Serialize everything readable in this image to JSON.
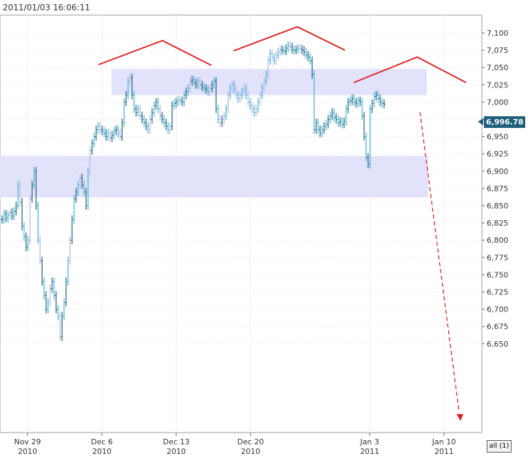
{
  "timestamp": "2011/01/03 16:06:11",
  "range_button": "all (1)",
  "last_price": "6,996.78",
  "colors": {
    "bar_primary": "#1b5c73",
    "bar_secondary": "#35b3d6",
    "bar_light": "#b9b1de",
    "zone_fill": "#e2e2fb",
    "annotation": "#e02020",
    "grid": "#d9d9d9",
    "axis": "#666666",
    "price_tag": "#1f5f7a"
  },
  "chart_data": {
    "type": "bar",
    "title": "",
    "xlabel": "",
    "ylabel": "",
    "ylim": [
      6640,
      7120
    ],
    "y_ticks": [
      "7,100",
      "7,075",
      "7,050",
      "7,025",
      "7,000",
      "6,975",
      "6,950",
      "6,925",
      "6,900",
      "6,875",
      "6,850",
      "6,825",
      "6,800",
      "6,775",
      "6,750",
      "6,725",
      "6,700",
      "6,675",
      "6,650"
    ],
    "x_ticks": [
      {
        "label": "Nov 29",
        "year": "2010"
      },
      {
        "label": "Dec 6",
        "year": "2010"
      },
      {
        "label": "Dec 13",
        "year": "2010"
      },
      {
        "label": "Dec 20",
        "year": "2010"
      },
      {
        "label": "Jan 3",
        "year": "2011"
      },
      {
        "label": "Jan 10",
        "year": "2011"
      }
    ],
    "last_value": 6996.78,
    "zones": [
      {
        "from": 7010,
        "to": 7048
      },
      {
        "from": 6862,
        "to": 6922
      }
    ],
    "price_series": [
      6830,
      6838,
      6832,
      6836,
      6840,
      6835,
      6842,
      6850,
      6880,
      6855,
      6820,
      6805,
      6790,
      6800,
      6860,
      6880,
      6900,
      6850,
      6800,
      6770,
      6740,
      6720,
      6700,
      6710,
      6730,
      6740,
      6720,
      6700,
      6690,
      6660,
      6690,
      6710,
      6740,
      6770,
      6800,
      6830,
      6860,
      6870,
      6880,
      6890,
      6880,
      6870,
      6850,
      6900,
      6930,
      6940,
      6950,
      6960,
      6965,
      6960,
      6958,
      6955,
      6950,
      6955,
      6948,
      6952,
      6958,
      6960,
      6955,
      6950,
      6970,
      7000,
      7010,
      7030,
      7035,
      7010,
      6990,
      6985,
      6990,
      6980,
      6975,
      6970,
      6965,
      6960,
      6975,
      6985,
      6995,
      7000,
      6990,
      6980,
      6975,
      6970,
      6965,
      6960,
      6965,
      6995,
      6998,
      7000,
      7003,
      7002,
      7000,
      7010,
      7015,
      7020,
      7030,
      7032,
      7028,
      7025,
      7030,
      7025,
      7022,
      7020,
      7018,
      7015,
      7020,
      7025,
      7030,
      6990,
      6975,
      6970,
      6975,
      6980,
      6990,
      7010,
      7020,
      7025,
      7018,
      7010,
      7005,
      7010,
      7015,
      7020,
      7010,
      7000,
      6995,
      6990,
      6985,
      6990,
      7000,
      7010,
      7020,
      7030,
      7040,
      7060,
      7070,
      7065,
      7060,
      7068,
      7072,
      7076,
      7075,
      7074,
      7078,
      7082,
      7080,
      7076,
      7075,
      7076,
      7078,
      7077,
      7075,
      7072,
      7068,
      7065,
      7060,
      7040,
      6960,
      6970,
      6960,
      6955,
      6960,
      6965,
      6968,
      6975,
      6980,
      6985,
      6978,
      6975,
      6970,
      6972,
      6968,
      6972,
      6990,
      7000,
      7002,
      7005,
      7000,
      6998,
      7002,
      7000,
      6980,
      6950,
      6920,
      6910,
      6990,
      6998,
      7008,
      7010,
      7005,
      7000,
      6998,
      6997
    ]
  }
}
